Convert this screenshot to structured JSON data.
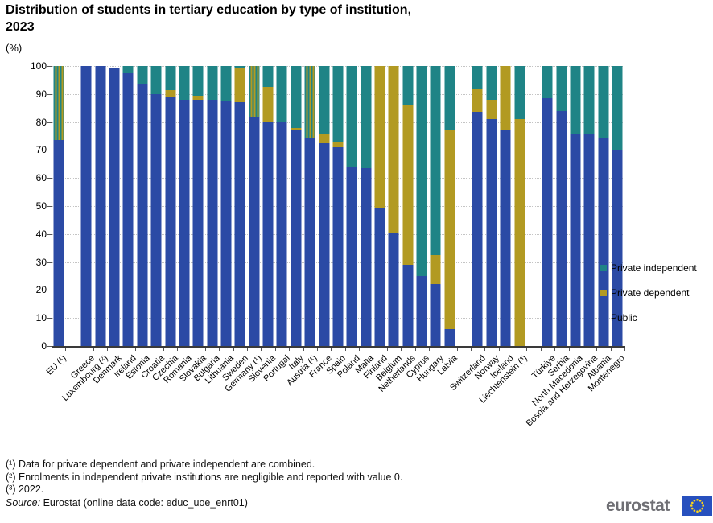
{
  "title_line1": "Distribution of students in tertiary education by type of institution,",
  "title_line2": "2023",
  "unit": "(%)",
  "footnotes": [
    "(¹) Data for private dependent and private independent are combined.",
    "(²) Enrolments in independent private institutions are negligible and reported with value 0.",
    "(³) 2022."
  ],
  "source_label": "Source:",
  "source_rest": " Eurostat (online data code: educ_uoe_enrt01)",
  "logo_text": "eurostat",
  "colors": {
    "public": "#2B4AA5",
    "private_dependent": "#B29A22",
    "private_independent": "#1F8486",
    "axis": "#3a3a3a",
    "gridline": "#c4c4c4",
    "flag_blue": "#2750BE",
    "flag_stars": "#FFD617",
    "logo_gray": "#6f6f74"
  },
  "chart_data": {
    "type": "bar",
    "subtype": "stacked-vertical-percent",
    "title": "Distribution of students in tertiary education by type of institution, 2023",
    "ylabel": "(%)",
    "ylim": [
      0,
      100
    ],
    "ytick_step": 10,
    "grid": "horizontal-dotted",
    "legend_position": "right",
    "legend": [
      {
        "label": "Private independent",
        "color": "#1F8486"
      },
      {
        "label": "Private dependent",
        "color": "#B29A22"
      },
      {
        "label": "Public",
        "color": "#2B4AA5"
      }
    ],
    "hatched_note": "Bars marked (¹) show combined private dependent and private independent as teal/gold vertical stripes",
    "series_order": [
      "public",
      "private_dependent",
      "private_independent",
      "combined_private"
    ],
    "countries": [
      {
        "name": "EU (¹)",
        "public": 73.5,
        "private_dependent": 0,
        "private_independent": 0,
        "combined_private": 26.5
      },
      {
        "name": "Greece",
        "public": 100,
        "private_dependent": 0,
        "private_independent": 0,
        "gap_before": true
      },
      {
        "name": "Luxembourg (²)",
        "public": 100,
        "private_dependent": 0,
        "private_independent": 0
      },
      {
        "name": "Denmark",
        "public": 99.4,
        "private_dependent": 0,
        "private_independent": 0
      },
      {
        "name": "Ireland",
        "public": 97.5,
        "private_dependent": 0,
        "private_independent": 2.5
      },
      {
        "name": "Estonia",
        "public": 93.5,
        "private_dependent": 0,
        "private_independent": 6.5
      },
      {
        "name": "Croatia",
        "public": 90,
        "private_dependent": 0,
        "private_independent": 10
      },
      {
        "name": "Czechia",
        "public": 89,
        "private_dependent": 2.5,
        "private_independent": 8.5
      },
      {
        "name": "Romania",
        "public": 88,
        "private_dependent": 0,
        "private_independent": 12
      },
      {
        "name": "Slovakia",
        "public": 88,
        "private_dependent": 1.5,
        "private_independent": 10.5
      },
      {
        "name": "Bulgaria",
        "public": 88,
        "private_dependent": 0,
        "private_independent": 12
      },
      {
        "name": "Lithuania",
        "public": 87.5,
        "private_dependent": 0,
        "private_independent": 12.5
      },
      {
        "name": "Sweden",
        "public": 87,
        "private_dependent": 12.5,
        "private_independent": 0.5
      },
      {
        "name": "Germany (¹)",
        "public": 82,
        "private_dependent": 0,
        "private_independent": 0,
        "combined_private": 18
      },
      {
        "name": "Slovenia",
        "public": 80,
        "private_dependent": 12.5,
        "private_independent": 7.5
      },
      {
        "name": "Portugal",
        "public": 80,
        "private_dependent": 0,
        "private_independent": 20
      },
      {
        "name": "Italy",
        "public": 77,
        "private_dependent": 1,
        "private_independent": 22
      },
      {
        "name": "Austria (¹)",
        "public": 74.5,
        "private_dependent": 0,
        "private_independent": 0,
        "combined_private": 25.5
      },
      {
        "name": "France",
        "public": 72.5,
        "private_dependent": 3,
        "private_independent": 24.5
      },
      {
        "name": "Spain",
        "public": 71,
        "private_dependent": 2,
        "private_independent": 27
      },
      {
        "name": "Poland",
        "public": 64,
        "private_dependent": 0,
        "private_independent": 36
      },
      {
        "name": "Malta",
        "public": 63.5,
        "private_dependent": 0,
        "private_independent": 36.5
      },
      {
        "name": "Finland",
        "public": 49.5,
        "private_dependent": 50.5,
        "private_independent": 0
      },
      {
        "name": "Belgium",
        "public": 40.5,
        "private_dependent": 59.5,
        "private_independent": 0
      },
      {
        "name": "Netherlands",
        "public": 29,
        "private_dependent": 57,
        "private_independent": 14
      },
      {
        "name": "Cyprus",
        "public": 25,
        "private_dependent": 0,
        "private_independent": 75
      },
      {
        "name": "Hungary",
        "public": 22,
        "private_dependent": 10.5,
        "private_independent": 67.5
      },
      {
        "name": "Latvia",
        "public": 6,
        "private_dependent": 71,
        "private_independent": 23
      },
      {
        "name": "Switzerland",
        "public": 83.5,
        "private_dependent": 8.5,
        "private_independent": 8,
        "gap_before": true
      },
      {
        "name": "Norway",
        "public": 81,
        "private_dependent": 7,
        "private_independent": 12
      },
      {
        "name": "Iceland",
        "public": 77,
        "private_dependent": 23,
        "private_independent": 0
      },
      {
        "name": "Liechtenstein (³)",
        "public": 0,
        "private_dependent": 81,
        "private_independent": 19
      },
      {
        "name": "Türkiye",
        "public": 88.5,
        "private_dependent": 0,
        "private_independent": 11.5,
        "gap_before": true
      },
      {
        "name": "Serbia",
        "public": 84,
        "private_dependent": 0,
        "private_independent": 16
      },
      {
        "name": "North Macedonia",
        "public": 76,
        "private_dependent": 0,
        "private_independent": 24
      },
      {
        "name": "Bosnia and Herzegovina",
        "public": 75.5,
        "private_dependent": 0,
        "private_independent": 24.5
      },
      {
        "name": "Albania",
        "public": 74,
        "private_dependent": 0,
        "private_independent": 26
      },
      {
        "name": "Montenegro",
        "public": 70,
        "private_dependent": 0,
        "private_independent": 30
      }
    ]
  }
}
